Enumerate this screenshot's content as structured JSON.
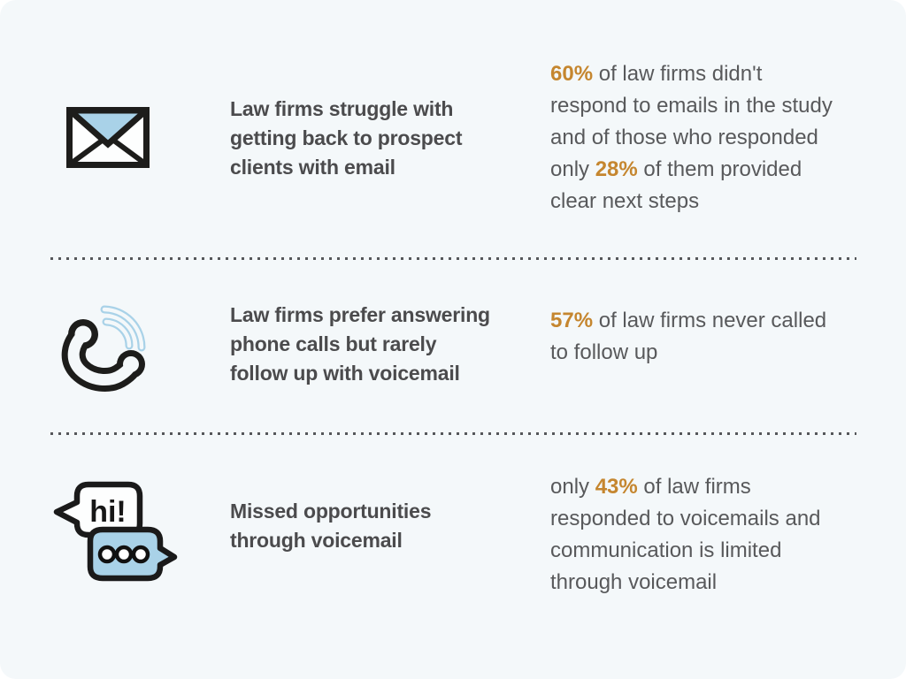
{
  "canvas": {
    "background": "#f4f8fa",
    "accent_orange": "#c5862f",
    "accent_blue": "#a9d2e8",
    "heading_color": "#4b4b4d",
    "body_color": "#58595b",
    "icon_stroke": "#1d1d1b",
    "divider_color": "#55575a"
  },
  "rows": [
    {
      "id": "email",
      "icon": "envelope-icon",
      "heading": "Law firms struggle with\ngetting back to prospect\nclients with email",
      "fact_segments": [
        {
          "text": "60%",
          "highlight": true
        },
        {
          "text": " of law firms didn't\nrespond to emails in the study\nand of those who responded\nonly ",
          "highlight": false
        },
        {
          "text": "28%",
          "highlight": true
        },
        {
          "text": " of them provided\nclear next steps",
          "highlight": false
        }
      ]
    },
    {
      "id": "phone",
      "icon": "phone-icon",
      "heading": "Law firms prefer answering\nphone calls but rarely\nfollow up with voicemail",
      "fact_segments": [
        {
          "text": "57%",
          "highlight": true
        },
        {
          "text": " of law firms never called\nto follow up",
          "highlight": false
        }
      ]
    },
    {
      "id": "voicemail",
      "icon": "speech-bubbles-icon",
      "heading": "Missed opportunities\nthrough voicemail",
      "fact_segments": [
        {
          "text": "only ",
          "highlight": false
        },
        {
          "text": "43%",
          "highlight": true
        },
        {
          "text": " of law firms\nresponded to voicemails and\ncommunication is limited\nthrough voicemail",
          "highlight": false
        }
      ]
    }
  ],
  "icons": {
    "speech_bubble_hi_text": "hi!"
  }
}
